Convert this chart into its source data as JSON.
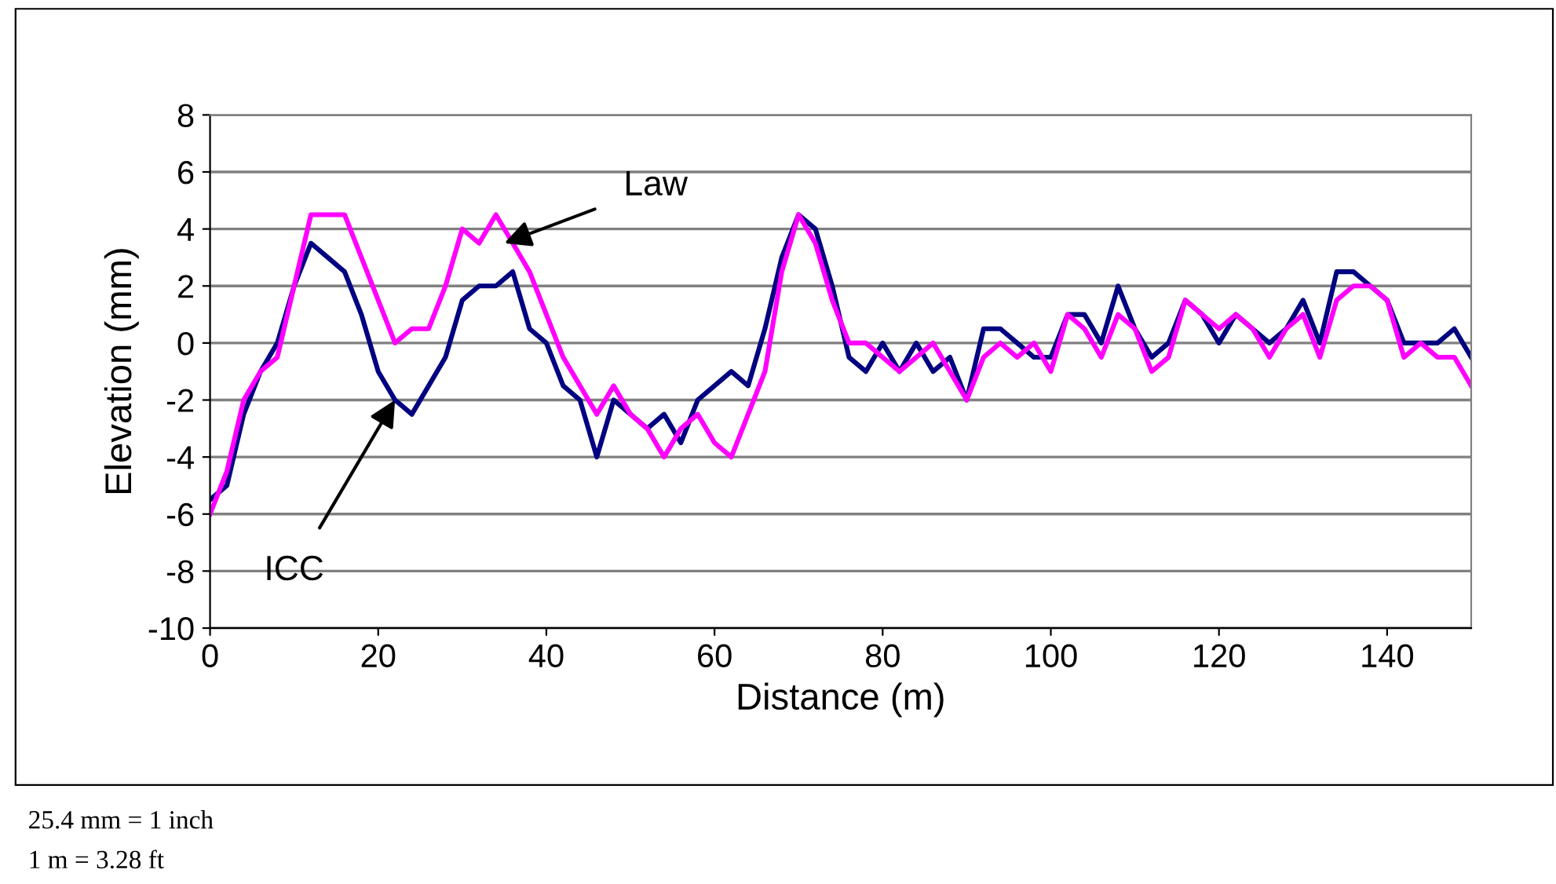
{
  "chart_data": {
    "type": "line",
    "xlabel": "Distance (m)",
    "ylabel": "Elevation (mm)",
    "x": [
      0,
      2,
      4,
      6,
      8,
      10,
      12,
      14,
      16,
      18,
      20,
      22,
      24,
      26,
      28,
      30,
      32,
      34,
      36,
      38,
      40,
      42,
      44,
      46,
      48,
      50,
      52,
      54,
      56,
      58,
      60,
      62,
      64,
      66,
      68,
      70,
      72,
      74,
      76,
      78,
      80,
      82,
      84,
      86,
      88,
      90,
      92,
      94,
      96,
      98,
      100,
      102,
      104,
      106,
      108,
      110,
      112,
      114,
      116,
      118,
      120,
      122,
      124,
      126,
      128,
      130,
      132,
      134,
      136,
      138,
      140,
      142,
      144,
      146,
      148,
      150
    ],
    "series": [
      {
        "color": "#000080",
        "values": [
          -5.5,
          -5,
          -2.5,
          -1,
          0,
          2,
          3.5,
          3,
          2.5,
          1,
          -1,
          -2,
          -2.5,
          -1.5,
          -0.5,
          1.5,
          2,
          2,
          2.5,
          0.5,
          0,
          -1.5,
          -2,
          -4,
          -2,
          -2.5,
          -3,
          -2.5,
          -3.5,
          -2,
          -1.5,
          -1,
          -1.5,
          0.5,
          3,
          4.5,
          4,
          2,
          -0.5,
          -1,
          0,
          -1,
          0,
          -1,
          -0.5,
          -2,
          0.5,
          0.5,
          0,
          -0.5,
          -0.5,
          1,
          1,
          0,
          2,
          0.5,
          -0.5,
          0,
          1.5,
          1,
          0,
          1,
          0.5,
          0,
          0.5,
          1.5,
          0,
          2.5,
          2.5,
          2,
          1.5,
          0,
          0,
          0,
          0.5,
          -0.5
        ]
      },
      {
        "color": "#ff00ff",
        "values": [
          -6,
          -4.5,
          -2,
          -1,
          -0.5,
          2,
          4.5,
          4.5,
          4.5,
          3,
          1.5,
          0,
          0.5,
          0.5,
          2,
          4,
          3.5,
          4.5,
          3.5,
          2.5,
          1,
          -0.5,
          -1.5,
          -2.5,
          -1.5,
          -2.5,
          -3,
          -4,
          -3,
          -2.5,
          -3.5,
          -4,
          -2.5,
          -1,
          2.5,
          4.5,
          3.5,
          1.5,
          0,
          0,
          -0.5,
          -1,
          -0.5,
          0,
          -1,
          -2,
          -0.5,
          0,
          -0.5,
          0,
          -1,
          1,
          0.5,
          -0.5,
          1,
          0.5,
          -1,
          -0.5,
          1.5,
          1,
          0.5,
          1,
          0.5,
          -0.5,
          0.5,
          1,
          -0.5,
          1.5,
          2,
          2,
          1.5,
          -0.5,
          0,
          -0.5,
          -0.5,
          -1.5
        ]
      }
    ],
    "xlim": [
      0,
      150
    ],
    "xticks": [
      0,
      20,
      40,
      60,
      80,
      100,
      120,
      140
    ],
    "ylim": [
      -10,
      8
    ],
    "yticks": [
      -10,
      -8,
      -6,
      -4,
      -2,
      0,
      2,
      4,
      6,
      8
    ],
    "grid": "y",
    "marker": "none",
    "line_style": "solid",
    "annotations": [
      {
        "text": "Law",
        "x": 35,
        "y": 3.5
      },
      {
        "text": "ICC",
        "x": 22,
        "y": -2
      },
      "25.4 mm = 1 inch",
      "1 m = 3.28 ft"
    ]
  }
}
